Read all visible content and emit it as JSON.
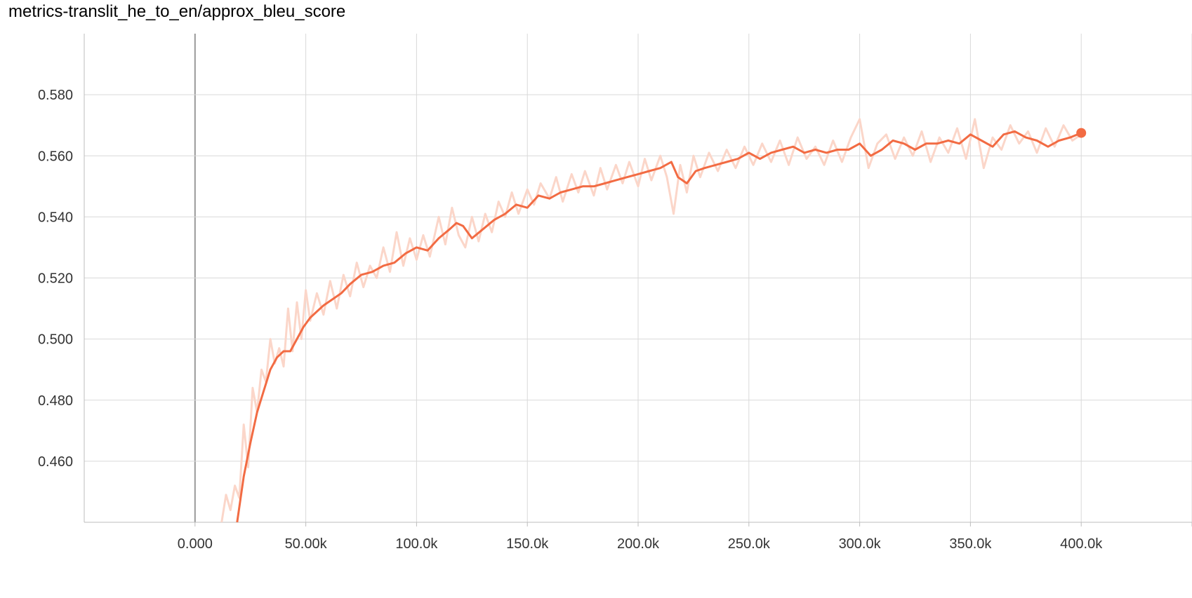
{
  "chart_data": {
    "type": "line",
    "title": "metrics-translit_he_to_en/approx_bleu_score",
    "xlabel": "",
    "ylabel": "",
    "xlim": [
      -50000,
      450000
    ],
    "ylim": [
      0.44,
      0.6
    ],
    "x_ticks": [
      0,
      50000,
      100000,
      150000,
      200000,
      250000,
      300000,
      350000,
      400000
    ],
    "x_tick_labels": [
      "0.000",
      "50.00k",
      "100.0k",
      "150.0k",
      "200.0k",
      "250.0k",
      "300.0k",
      "350.0k",
      "400.0k"
    ],
    "y_ticks": [
      0.46,
      0.48,
      0.5,
      0.52,
      0.54,
      0.56,
      0.58
    ],
    "y_tick_labels": [
      "0.460",
      "0.480",
      "0.500",
      "0.520",
      "0.540",
      "0.560",
      "0.580"
    ],
    "grid": true,
    "colors": {
      "smoothed": "#f26b43",
      "raw": "#fbd6c9",
      "grid": "#d9d9d9",
      "zero_line": "#999999"
    },
    "series": [
      {
        "role": "smoothed",
        "x": [
          19000,
          22000,
          25000,
          28000,
          31000,
          34000,
          37000,
          40000,
          43000,
          46000,
          49000,
          52000,
          55000,
          58000,
          62000,
          66000,
          70000,
          75000,
          80000,
          85000,
          90000,
          95000,
          100000,
          105000,
          110000,
          115000,
          118000,
          121000,
          125000,
          130000,
          135000,
          140000,
          145000,
          150000,
          155000,
          160000,
          165000,
          170000,
          175000,
          180000,
          185000,
          190000,
          195000,
          200000,
          205000,
          210000,
          215000,
          218000,
          222000,
          226000,
          230000,
          235000,
          240000,
          245000,
          250000,
          255000,
          260000,
          265000,
          270000,
          275000,
          280000,
          285000,
          290000,
          295000,
          300000,
          305000,
          310000,
          315000,
          320000,
          325000,
          330000,
          335000,
          340000,
          345000,
          350000,
          355000,
          360000,
          365000,
          370000,
          375000,
          380000,
          385000,
          390000,
          395000,
          400000
        ],
        "y": [
          0.44,
          0.455,
          0.466,
          0.476,
          0.483,
          0.49,
          0.494,
          0.496,
          0.496,
          0.5,
          0.504,
          0.507,
          0.509,
          0.511,
          0.513,
          0.515,
          0.518,
          0.521,
          0.522,
          0.524,
          0.525,
          0.528,
          0.53,
          0.529,
          0.533,
          0.536,
          0.538,
          0.537,
          0.533,
          0.536,
          0.539,
          0.541,
          0.544,
          0.543,
          0.547,
          0.546,
          0.548,
          0.549,
          0.55,
          0.55,
          0.551,
          0.552,
          0.553,
          0.554,
          0.555,
          0.556,
          0.558,
          0.553,
          0.551,
          0.555,
          0.556,
          0.557,
          0.558,
          0.559,
          0.561,
          0.559,
          0.561,
          0.562,
          0.563,
          0.561,
          0.562,
          0.561,
          0.562,
          0.562,
          0.564,
          0.56,
          0.562,
          0.565,
          0.564,
          0.562,
          0.564,
          0.564,
          0.565,
          0.564,
          0.567,
          0.565,
          0.563,
          0.567,
          0.568,
          0.566,
          0.565,
          0.563,
          0.565,
          0.566,
          0.5675
        ]
      },
      {
        "role": "raw",
        "x": [
          12000,
          14000,
          16000,
          18000,
          20000,
          22000,
          24000,
          26000,
          28000,
          30000,
          32000,
          34000,
          36000,
          38000,
          40000,
          42000,
          44000,
          46000,
          48000,
          50000,
          52000,
          55000,
          58000,
          61000,
          64000,
          67000,
          70000,
          73000,
          76000,
          79000,
          82000,
          85000,
          88000,
          91000,
          94000,
          97000,
          100000,
          103000,
          106000,
          110000,
          113000,
          116000,
          119000,
          122000,
          125000,
          128000,
          131000,
          134000,
          137000,
          140000,
          143000,
          146000,
          150000,
          153000,
          156000,
          160000,
          163000,
          166000,
          170000,
          173000,
          176000,
          180000,
          183000,
          186000,
          190000,
          193000,
          196000,
          200000,
          203000,
          206000,
          210000,
          213000,
          216000,
          219000,
          222000,
          225000,
          228000,
          232000,
          236000,
          240000,
          244000,
          248000,
          252000,
          256000,
          260000,
          264000,
          268000,
          272000,
          276000,
          280000,
          284000,
          288000,
          292000,
          296000,
          300000,
          304000,
          308000,
          312000,
          316000,
          320000,
          324000,
          328000,
          332000,
          336000,
          340000,
          344000,
          348000,
          352000,
          356000,
          360000,
          364000,
          368000,
          372000,
          376000,
          380000,
          384000,
          388000,
          392000,
          396000,
          400000
        ],
        "y": [
          0.44,
          0.449,
          0.444,
          0.452,
          0.448,
          0.472,
          0.458,
          0.484,
          0.476,
          0.49,
          0.486,
          0.5,
          0.492,
          0.497,
          0.491,
          0.51,
          0.496,
          0.512,
          0.5,
          0.516,
          0.506,
          0.515,
          0.508,
          0.519,
          0.51,
          0.521,
          0.514,
          0.525,
          0.517,
          0.524,
          0.52,
          0.53,
          0.522,
          0.535,
          0.524,
          0.533,
          0.526,
          0.534,
          0.527,
          0.54,
          0.531,
          0.543,
          0.534,
          0.53,
          0.54,
          0.532,
          0.541,
          0.535,
          0.545,
          0.54,
          0.548,
          0.541,
          0.549,
          0.544,
          0.551,
          0.546,
          0.553,
          0.545,
          0.554,
          0.548,
          0.555,
          0.547,
          0.556,
          0.549,
          0.557,
          0.551,
          0.558,
          0.55,
          0.559,
          0.552,
          0.56,
          0.553,
          0.541,
          0.557,
          0.548,
          0.56,
          0.553,
          0.561,
          0.555,
          0.562,
          0.556,
          0.563,
          0.557,
          0.564,
          0.558,
          0.565,
          0.557,
          0.566,
          0.559,
          0.563,
          0.557,
          0.565,
          0.558,
          0.566,
          0.572,
          0.556,
          0.564,
          0.567,
          0.559,
          0.566,
          0.56,
          0.568,
          0.558,
          0.566,
          0.561,
          0.569,
          0.559,
          0.572,
          0.556,
          0.566,
          0.562,
          0.57,
          0.564,
          0.568,
          0.561,
          0.569,
          0.563,
          0.57,
          0.565,
          0.567
        ]
      }
    ],
    "last_point": {
      "x": 400000,
      "y": 0.5675
    }
  }
}
